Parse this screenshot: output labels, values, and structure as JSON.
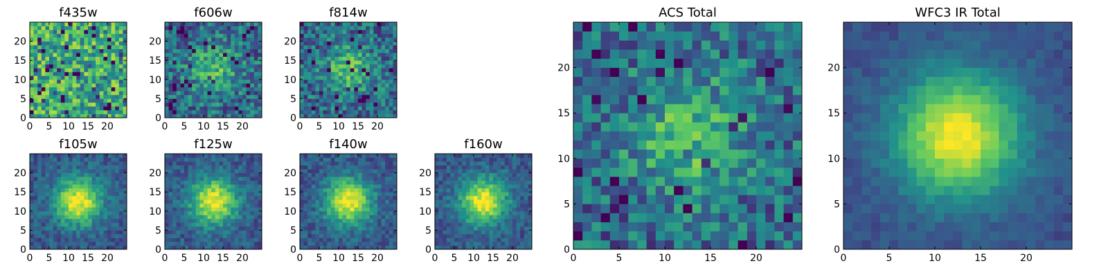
{
  "chart_data": [
    {
      "type": "heatmap",
      "title": "f435w",
      "xticks": [
        "0",
        "5",
        "10",
        "15",
        "20"
      ],
      "yticks": [
        "0",
        "5",
        "10",
        "15",
        "20"
      ],
      "grid_size": 25,
      "pattern": "noise",
      "seed": 3
    },
    {
      "type": "heatmap",
      "title": "f606w",
      "xticks": [
        "0",
        "5",
        "10",
        "15",
        "20"
      ],
      "yticks": [
        "0",
        "5",
        "10",
        "15",
        "20"
      ],
      "grid_size": 25,
      "pattern": "faint-source",
      "seed": 7
    },
    {
      "type": "heatmap",
      "title": "f814w",
      "xticks": [
        "0",
        "5",
        "10",
        "15",
        "20"
      ],
      "yticks": [
        "0",
        "5",
        "10",
        "15",
        "20"
      ],
      "grid_size": 25,
      "pattern": "faint-source",
      "seed": 11
    },
    {
      "type": "heatmap",
      "title": "f105w",
      "xticks": [
        "0",
        "5",
        "10",
        "15",
        "20"
      ],
      "yticks": [
        "0",
        "5",
        "10",
        "15",
        "20"
      ],
      "grid_size": 25,
      "pattern": "source",
      "seed": 13
    },
    {
      "type": "heatmap",
      "title": "f125w",
      "xticks": [
        "0",
        "5",
        "10",
        "15",
        "20"
      ],
      "yticks": [
        "0",
        "5",
        "10",
        "15",
        "20"
      ],
      "grid_size": 25,
      "pattern": "source",
      "seed": 17
    },
    {
      "type": "heatmap",
      "title": "f140w",
      "xticks": [
        "0",
        "5",
        "10",
        "15",
        "20"
      ],
      "yticks": [
        "0",
        "5",
        "10",
        "15",
        "20"
      ],
      "grid_size": 25,
      "pattern": "source",
      "seed": 19
    },
    {
      "type": "heatmap",
      "title": "f160w",
      "xticks": [
        "0",
        "5",
        "10",
        "15",
        "20"
      ],
      "yticks": [
        "0",
        "5",
        "10",
        "15",
        "20"
      ],
      "grid_size": 25,
      "pattern": "source",
      "seed": 23
    },
    {
      "type": "heatmap",
      "title": "ACS Total",
      "xticks": [
        "0",
        "5",
        "10",
        "15",
        "20"
      ],
      "yticks": [
        "0",
        "5",
        "10",
        "15",
        "20"
      ],
      "grid_size": 25,
      "pattern": "faint-source",
      "seed": 29
    },
    {
      "type": "heatmap",
      "title": "WFC3 IR Total",
      "xticks": [
        "0",
        "5",
        "10",
        "15",
        "20"
      ],
      "yticks": [
        "0",
        "5",
        "10",
        "15",
        "20"
      ],
      "grid_size": 25,
      "pattern": "smooth-source",
      "seed": 31
    }
  ],
  "colormap": [
    "#440154",
    "#3b528b",
    "#21918c",
    "#5ec962",
    "#fde725"
  ]
}
